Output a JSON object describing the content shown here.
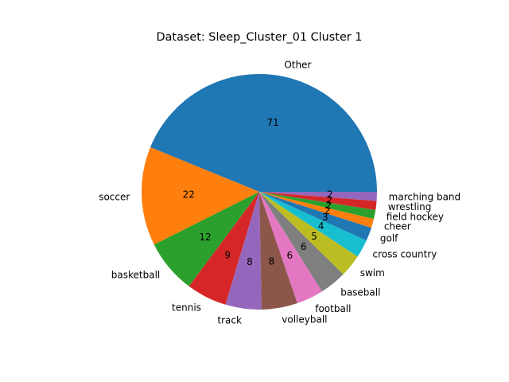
{
  "chart_data": {
    "type": "pie",
    "title": "Dataset: Sleep_Cluster_01 Cluster 1",
    "start_angle_deg": 0,
    "direction": "counterclockwise",
    "slices": [
      {
        "label": "Other",
        "value": 71,
        "color": "#1f77b4"
      },
      {
        "label": "soccer",
        "value": 22,
        "color": "#ff7f0e"
      },
      {
        "label": "basketball",
        "value": 12,
        "color": "#2ca02c"
      },
      {
        "label": "tennis",
        "value": 9,
        "color": "#d62728"
      },
      {
        "label": "track",
        "value": 8,
        "color": "#9467bd"
      },
      {
        "label": "volleyball",
        "value": 8,
        "color": "#8c564b"
      },
      {
        "label": "football",
        "value": 6,
        "color": "#e377c2"
      },
      {
        "label": "baseball",
        "value": 6,
        "color": "#7f7f7f"
      },
      {
        "label": "swim",
        "value": 5,
        "color": "#bcbd22"
      },
      {
        "label": "cross country",
        "value": 4,
        "color": "#17becf"
      },
      {
        "label": "golf",
        "value": 3,
        "color": "#1f77b4"
      },
      {
        "label": "cheer",
        "value": 2,
        "color": "#ff7f0e"
      },
      {
        "label": "field hockey",
        "value": 2,
        "color": "#2ca02c"
      },
      {
        "label": "wrestling",
        "value": 2,
        "color": "#d62728"
      },
      {
        "label": "marching band",
        "value": 2,
        "color": "#9467bd"
      }
    ]
  }
}
